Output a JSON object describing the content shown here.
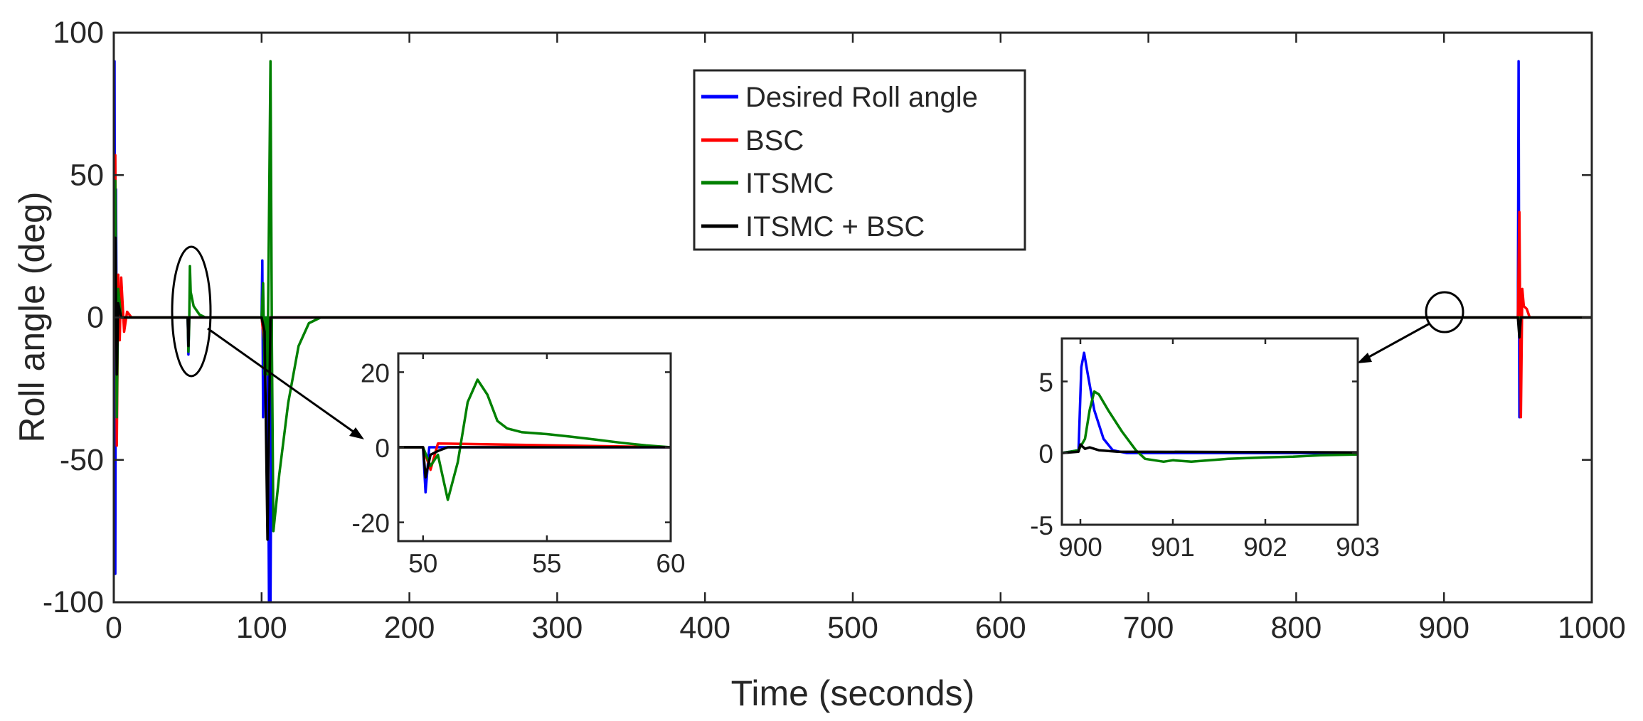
{
  "chart_data": [
    {
      "id": "main",
      "type": "line",
      "xlabel": "Time (seconds)",
      "ylabel": "Roll angle (deg)",
      "xlim": [
        0,
        1000
      ],
      "ylim": [
        -100,
        100
      ],
      "xticks": [
        0,
        100,
        200,
        300,
        400,
        500,
        600,
        700,
        800,
        900,
        1000
      ],
      "yticks": [
        -100,
        -50,
        0,
        50,
        100
      ],
      "xtick_labels": [
        "0",
        "100",
        "200",
        "300",
        "400",
        "500",
        "600",
        "700",
        "800",
        "900",
        "1000"
      ],
      "ytick_labels": [
        "-100",
        "-50",
        "0",
        "50",
        "100"
      ],
      "legend": {
        "position": "top-center",
        "entries": [
          {
            "label": "Desired Roll angle",
            "color": "#0000ff"
          },
          {
            "label": "BSC",
            "color": "#ff0000"
          },
          {
            "label": "ITSMC",
            "color": "#008000"
          },
          {
            "label": "ITSMC + BSC",
            "color": "#000000"
          }
        ]
      },
      "series": [
        {
          "name": "Desired Roll angle",
          "color": "#0000ff",
          "points": [
            [
              0,
              0
            ],
            [
              0.5,
              90
            ],
            [
              1,
              -90
            ],
            [
              1.5,
              45
            ],
            [
              2,
              -20
            ],
            [
              3,
              5
            ],
            [
              4,
              0
            ],
            [
              50,
              0
            ],
            [
              50.5,
              -13
            ],
            [
              51,
              0
            ],
            [
              100,
              0
            ],
            [
              100.5,
              20
            ],
            [
              101,
              -35
            ],
            [
              102,
              0
            ],
            [
              104,
              0
            ],
            [
              105,
              -100
            ],
            [
              106,
              -100
            ],
            [
              107,
              0
            ],
            [
              950,
              0
            ],
            [
              950.5,
              90
            ],
            [
              951,
              -35
            ],
            [
              952,
              0
            ],
            [
              1000,
              0
            ]
          ]
        },
        {
          "name": "BSC",
          "color": "#ff0000",
          "points": [
            [
              0,
              0
            ],
            [
              1,
              57
            ],
            [
              2,
              -45
            ],
            [
              3,
              15
            ],
            [
              4,
              -8
            ],
            [
              5,
              14
            ],
            [
              7,
              -5
            ],
            [
              9,
              2
            ],
            [
              12,
              0
            ],
            [
              100,
              0
            ],
            [
              102,
              -10
            ],
            [
              104,
              0
            ],
            [
              950,
              0
            ],
            [
              951,
              37
            ],
            [
              952,
              -35
            ],
            [
              953,
              10
            ],
            [
              954,
              4
            ],
            [
              956,
              3
            ],
            [
              958,
              0
            ],
            [
              1000,
              0
            ]
          ]
        },
        {
          "name": "ITSMC",
          "color": "#008000",
          "points": [
            [
              0,
              0
            ],
            [
              1,
              48
            ],
            [
              2,
              -35
            ],
            [
              3,
              10
            ],
            [
              5,
              0
            ],
            [
              50,
              0
            ],
            [
              50.5,
              -12
            ],
            [
              51,
              -3
            ],
            [
              51.5,
              18
            ],
            [
              52,
              9
            ],
            [
              54,
              4
            ],
            [
              58,
              1
            ],
            [
              62,
              0
            ],
            [
              100,
              0
            ],
            [
              101,
              12
            ],
            [
              102,
              -20
            ],
            [
              103,
              0
            ],
            [
              104,
              -20
            ],
            [
              106,
              90
            ],
            [
              107,
              -10
            ],
            [
              108,
              -75
            ],
            [
              112,
              -55
            ],
            [
              118,
              -30
            ],
            [
              125,
              -10
            ],
            [
              132,
              -2
            ],
            [
              140,
              0
            ],
            [
              1000,
              0
            ]
          ]
        },
        {
          "name": "ITSMC + BSC",
          "color": "#000000",
          "points": [
            [
              0,
              0
            ],
            [
              1,
              28
            ],
            [
              2,
              -20
            ],
            [
              3,
              5
            ],
            [
              5,
              0
            ],
            [
              50,
              0
            ],
            [
              50.5,
              -10
            ],
            [
              51,
              0
            ],
            [
              100,
              0
            ],
            [
              102,
              -5
            ],
            [
              104,
              -78
            ],
            [
              106,
              0
            ],
            [
              950,
              0
            ],
            [
              951,
              -7
            ],
            [
              952,
              0
            ],
            [
              1000,
              0
            ]
          ]
        }
      ],
      "annotations": [
        {
          "type": "ellipse",
          "center": [
            52,
            0
          ],
          "target": "inset-50-60"
        },
        {
          "type": "ellipse",
          "center": [
            900,
            0
          ],
          "target": "inset-900-903"
        }
      ]
    },
    {
      "id": "inset-50-60",
      "type": "line",
      "xlim": [
        49,
        60
      ],
      "ylim": [
        -25,
        25
      ],
      "xticks": [
        50,
        55,
        60
      ],
      "yticks": [
        -20,
        0,
        20
      ],
      "xtick_labels": [
        "50",
        "55",
        "60"
      ],
      "ytick_labels": [
        "-20",
        "0",
        "20"
      ],
      "series": [
        {
          "name": "Desired Roll angle",
          "color": "#0000ff",
          "points": [
            [
              49,
              0
            ],
            [
              50,
              0
            ],
            [
              50.1,
              -12
            ],
            [
              50.25,
              0
            ],
            [
              60,
              0
            ]
          ]
        },
        {
          "name": "BSC",
          "color": "#ff0000",
          "points": [
            [
              49,
              0
            ],
            [
              50,
              0
            ],
            [
              50.3,
              -6
            ],
            [
              50.6,
              1
            ],
            [
              60,
              0
            ]
          ]
        },
        {
          "name": "ITSMC",
          "color": "#008000",
          "points": [
            [
              49,
              0
            ],
            [
              50,
              0
            ],
            [
              50.3,
              -5
            ],
            [
              50.6,
              -2
            ],
            [
              51,
              -14
            ],
            [
              51.4,
              -4
            ],
            [
              51.8,
              12
            ],
            [
              52.2,
              18
            ],
            [
              52.6,
              14
            ],
            [
              53,
              7
            ],
            [
              53.4,
              5
            ],
            [
              54,
              4
            ],
            [
              55,
              3.5
            ],
            [
              56,
              2.8
            ],
            [
              57,
              2
            ],
            [
              58,
              1.2
            ],
            [
              59,
              0.5
            ],
            [
              60,
              0
            ]
          ]
        },
        {
          "name": "ITSMC + BSC",
          "color": "#000000",
          "points": [
            [
              49,
              0
            ],
            [
              50,
              0
            ],
            [
              50.1,
              -8
            ],
            [
              50.3,
              -2
            ],
            [
              50.6,
              -1
            ],
            [
              51,
              0
            ],
            [
              60,
              0
            ]
          ]
        }
      ]
    },
    {
      "id": "inset-900-903",
      "type": "line",
      "xlim": [
        899.8,
        903
      ],
      "ylim": [
        -5,
        8
      ],
      "xticks": [
        900,
        901,
        902,
        903
      ],
      "yticks": [
        -5,
        0,
        5
      ],
      "xtick_labels": [
        "900",
        "901",
        "902",
        "903"
      ],
      "ytick_labels": [
        "-5",
        "0",
        "5"
      ],
      "series": [
        {
          "name": "Desired Roll angle",
          "color": "#0000ff",
          "points": [
            [
              899.8,
              0
            ],
            [
              899.98,
              0.2
            ],
            [
              900.01,
              6
            ],
            [
              900.04,
              7
            ],
            [
              900.08,
              5.5
            ],
            [
              900.15,
              3
            ],
            [
              900.25,
              1
            ],
            [
              900.35,
              0.2
            ],
            [
              900.5,
              0
            ],
            [
              903,
              0
            ]
          ]
        },
        {
          "name": "ITSMC",
          "color": "#008000",
          "points": [
            [
              899.8,
              0
            ],
            [
              899.98,
              0.2
            ],
            [
              900.05,
              1
            ],
            [
              900.1,
              3
            ],
            [
              900.15,
              4.3
            ],
            [
              900.2,
              4.1
            ],
            [
              900.3,
              3
            ],
            [
              900.45,
              1.5
            ],
            [
              900.6,
              0.2
            ],
            [
              900.7,
              -0.4
            ],
            [
              900.9,
              -0.6
            ],
            [
              901,
              -0.5
            ],
            [
              901.2,
              -0.6
            ],
            [
              901.4,
              -0.5
            ],
            [
              901.6,
              -0.4
            ],
            [
              901.8,
              -0.35
            ],
            [
              902,
              -0.3
            ],
            [
              902.3,
              -0.25
            ],
            [
              902.6,
              -0.15
            ],
            [
              903,
              -0.1
            ]
          ]
        },
        {
          "name": "ITSMC + BSC",
          "color": "#000000",
          "points": [
            [
              899.8,
              0
            ],
            [
              899.98,
              0.1
            ],
            [
              900,
              0.6
            ],
            [
              900.05,
              0.3
            ],
            [
              900.1,
              0.4
            ],
            [
              900.2,
              0.2
            ],
            [
              900.4,
              0.1
            ],
            [
              903,
              0.05
            ]
          ]
        }
      ]
    }
  ]
}
